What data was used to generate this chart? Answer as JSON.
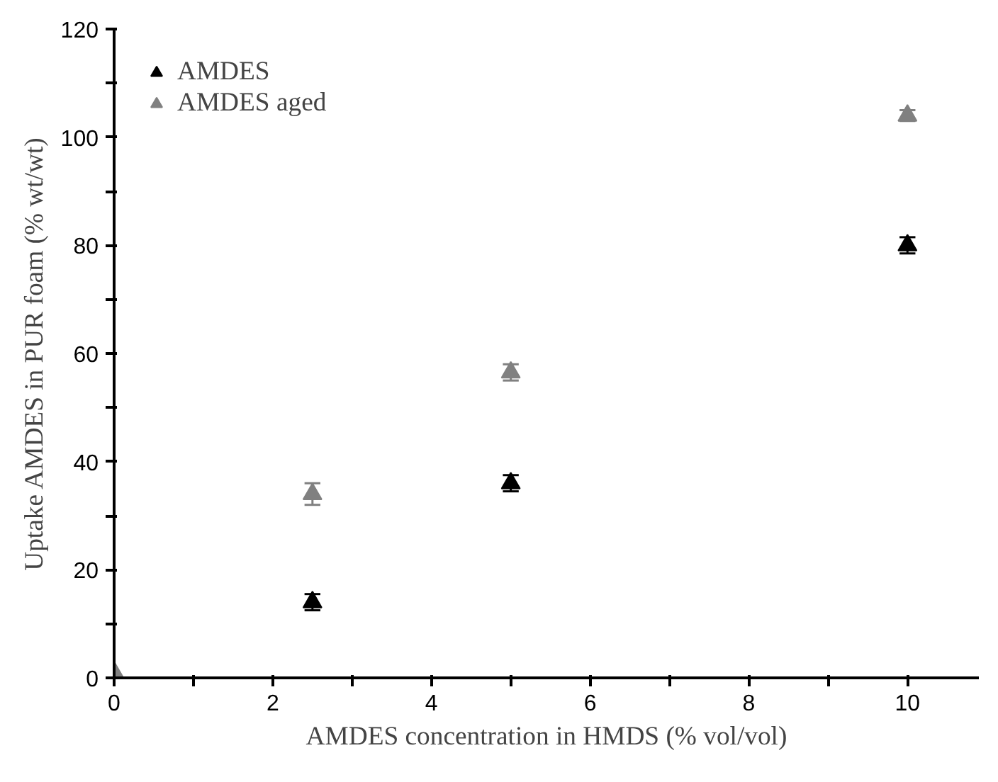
{
  "chart_data": {
    "type": "scatter",
    "xlabel": "AMDES concentration in HMDS (% vol/vol)",
    "ylabel": "Uptake AMDES in PUR foam (% wt/wt)",
    "series": [
      {
        "name": "AMDES",
        "color": "#000000",
        "x": [
          2.5,
          5,
          10
        ],
        "values": [
          14,
          36,
          80
        ],
        "errors": [
          1.5,
          1.5,
          1.5
        ]
      },
      {
        "name": "AMDES aged",
        "color": "#808080",
        "x": [
          0,
          2.5,
          5,
          10
        ],
        "values": [
          1,
          34,
          56.5,
          104
        ],
        "errors": [
          null,
          2,
          1.5,
          1
        ]
      }
    ],
    "xlim": [
      0,
      10.9
    ],
    "ylim": [
      0,
      120
    ],
    "xticks": [
      0,
      {
        "value": 1,
        "label": null
      },
      2,
      {
        "value": 3,
        "label": null
      },
      4,
      {
        "value": 5,
        "label": null
      },
      6,
      {
        "value": 7,
        "label": null
      },
      8,
      {
        "value": 9,
        "label": null
      },
      10
    ],
    "yticks": [
      0,
      {
        "value": 10,
        "label": null
      },
      20,
      {
        "value": 30,
        "label": null
      },
      40,
      {
        "value": 50,
        "label": null
      },
      60,
      {
        "value": 70,
        "label": null
      },
      80,
      {
        "value": 90,
        "label": null
      },
      100,
      {
        "value": 110,
        "label": null
      },
      120
    ],
    "marker": "triangle",
    "legend": "top left",
    "grid": false
  }
}
